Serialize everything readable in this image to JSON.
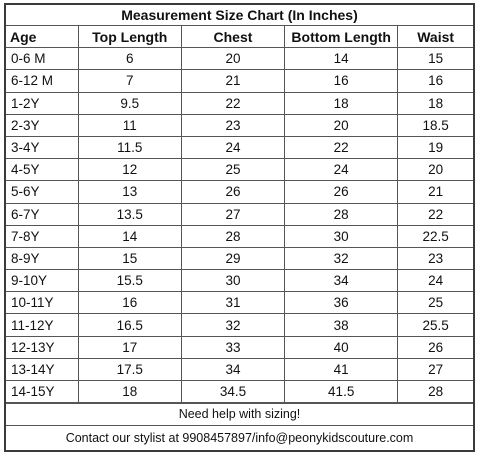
{
  "title": "Measurement Size Chart (In Inches)",
  "headers": [
    "Age",
    "Top Length",
    "Chest",
    "Bottom Length",
    "Waist"
  ],
  "rows": [
    [
      "0-6 M",
      "6",
      "20",
      "14",
      "15"
    ],
    [
      "6-12 M",
      "7",
      "21",
      "16",
      "16"
    ],
    [
      "1-2Y",
      "9.5",
      "22",
      "18",
      "18"
    ],
    [
      "2-3Y",
      "11",
      "23",
      "20",
      "18.5"
    ],
    [
      "3-4Y",
      "11.5",
      "24",
      "22",
      "19"
    ],
    [
      "4-5Y",
      "12",
      "25",
      "24",
      "20"
    ],
    [
      "5-6Y",
      "13",
      "26",
      "26",
      "21"
    ],
    [
      "6-7Y",
      "13.5",
      "27",
      "28",
      "22"
    ],
    [
      "7-8Y",
      "14",
      "28",
      "30",
      "22.5"
    ],
    [
      "8-9Y",
      "15",
      "29",
      "32",
      "23"
    ],
    [
      "9-10Y",
      "15.5",
      "30",
      "34",
      "24"
    ],
    [
      "10-11Y",
      "16",
      "31",
      "36",
      "25"
    ],
    [
      "11-12Y",
      "16.5",
      "32",
      "38",
      "25.5"
    ],
    [
      "12-13Y",
      "17",
      "33",
      "40",
      "26"
    ],
    [
      "13-14Y",
      "17.5",
      "34",
      "41",
      "27"
    ],
    [
      "14-15Y",
      "18",
      "34.5",
      "41.5",
      "28"
    ]
  ],
  "footer": {
    "help": "Need help with sizing!",
    "contact": "Contact our stylist at 9908457897/info@peonykidscouture.com"
  },
  "colors": {
    "border": "#555555",
    "text": "#111111",
    "background": "#ffffff"
  }
}
